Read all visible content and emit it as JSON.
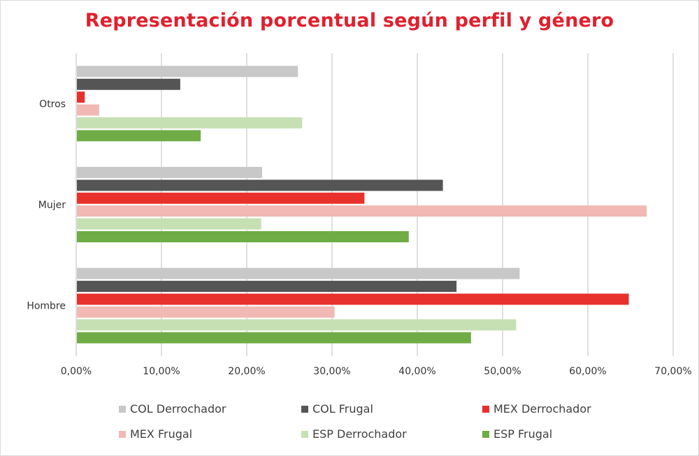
{
  "chart_data": {
    "type": "bar",
    "orientation": "horizontal",
    "title": "Representación porcentual según perfil y género",
    "categories": [
      "Otros",
      "Mujer",
      "Hombre"
    ],
    "series": [
      {
        "name": "COL Derrochador",
        "color": "#c8c8c8",
        "values": [
          26.0,
          21.8,
          52.0
        ]
      },
      {
        "name": "COL Frugal",
        "color": "#555555",
        "values": [
          12.2,
          43.0,
          44.6
        ]
      },
      {
        "name": "MEX Derrochador",
        "color": "#e8312d",
        "values": [
          1.0,
          33.8,
          64.8
        ]
      },
      {
        "name": "MEX Frugal",
        "color": "#f2b8b3",
        "values": [
          2.7,
          66.9,
          30.3
        ]
      },
      {
        "name": "ESP Derrochador",
        "color": "#c6e0b4",
        "values": [
          26.5,
          21.7,
          51.6
        ]
      },
      {
        "name": "ESP Frugal",
        "color": "#6fac46",
        "values": [
          14.6,
          39.0,
          46.3
        ]
      }
    ],
    "xlim": [
      0,
      70
    ],
    "xticks": [
      0,
      10,
      20,
      30,
      40,
      50,
      60,
      70
    ],
    "xtick_labels": [
      "0,00%",
      "10,00%",
      "20,00%",
      "30,00%",
      "40,00%",
      "50,00%",
      "60,00%",
      "70,00%"
    ],
    "grid": "vertical",
    "legend_position": "bottom"
  }
}
